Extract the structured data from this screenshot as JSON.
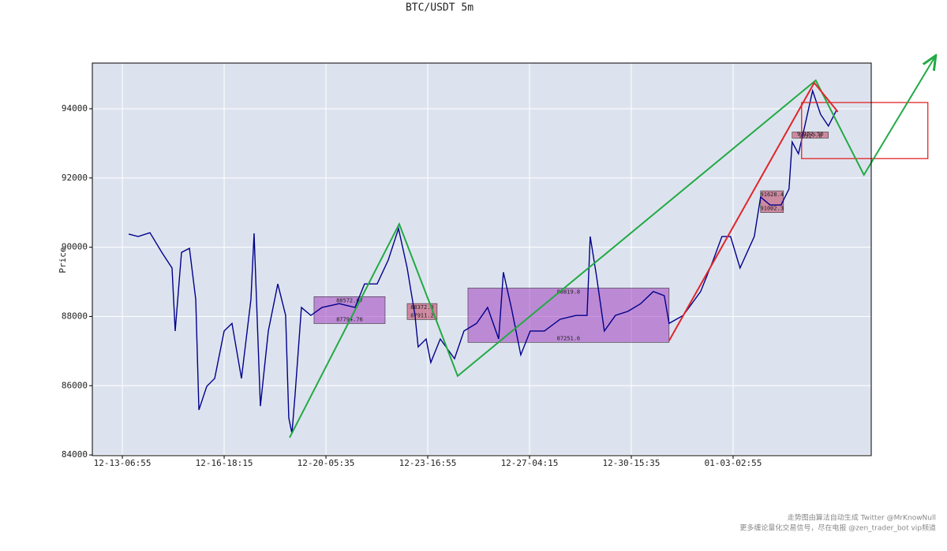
{
  "chart_data": {
    "type": "line",
    "title": "BTC/USDT 5m",
    "ylabel": "Price",
    "background": "#dde3ee",
    "grid": true,
    "xlim": [
      -295,
      7357
    ],
    "ylim": [
      83980,
      95320
    ],
    "xticks": [
      {
        "value": 0,
        "label": "12-13-06:55"
      },
      {
        "value": 1000,
        "label": "12-16-18:15"
      },
      {
        "value": 2000,
        "label": "12-20-05:35"
      },
      {
        "value": 3000,
        "label": "12-23-16:55"
      },
      {
        "value": 4000,
        "label": "12-27-04:15"
      },
      {
        "value": 5000,
        "label": "12-30-15:35"
      },
      {
        "value": 6000,
        "label": "01-03-02:55"
      }
    ],
    "yticks": [
      84000,
      86000,
      88000,
      90000,
      92000,
      94000
    ],
    "x": [
      62,
      155,
      271,
      388,
      488,
      519,
      581,
      659,
      721,
      752,
      829,
      907,
      1000,
      1077,
      1170,
      1263,
      1294,
      1356,
      1434,
      1527,
      1604,
      1635,
      1666,
      1697,
      1759,
      1852,
      1961,
      2131,
      2286,
      2379,
      2503,
      2612,
      2713,
      2798,
      2875,
      2906,
      2984,
      3030,
      3123,
      3263,
      3356,
      3480,
      3588,
      3697,
      3743,
      3821,
      3914,
      4007,
      4146,
      4301,
      4456,
      4565,
      4596,
      4658,
      4735,
      4844,
      4968,
      5092,
      5216,
      5324,
      5371,
      5510,
      5681,
      5805,
      5890,
      5975,
      6068,
      6208,
      6270,
      6363,
      6471,
      6549,
      6580,
      6642,
      6704,
      6781,
      6859,
      6936,
      7014
    ],
    "series": [
      {
        "color": "#00008b",
        "values": [
          90380,
          90310,
          90420,
          89850,
          89400,
          87580,
          89850,
          89970,
          88490,
          85300,
          85980,
          86210,
          87580,
          87800,
          86210,
          88490,
          90400,
          85410,
          87580,
          88940,
          88030,
          85070,
          84620,
          85750,
          88260,
          88030,
          88260,
          88370,
          88260,
          88940,
          88940,
          89630,
          90540,
          89400,
          88030,
          87120,
          87350,
          86670,
          87350,
          86780,
          87580,
          87800,
          88260,
          87350,
          89280,
          88260,
          86890,
          87580,
          87580,
          87920,
          88030,
          88030,
          90310,
          89170,
          87580,
          88030,
          88150,
          88370,
          88720,
          88600,
          87800,
          88030,
          88720,
          89630,
          90310,
          90310,
          89400,
          90310,
          91450,
          91220,
          91220,
          91680,
          93040,
          92700,
          93500,
          94520,
          93840,
          93500,
          93950
        ]
      }
    ],
    "boxes": [
      {
        "x": [
          1883,
          2581
        ],
        "high": 88572.07,
        "low": 87794.76,
        "color": "#a040c0"
      },
      {
        "x": [
          2798,
          3092
        ],
        "high": 88372.8,
        "low": 87911.2,
        "color": "#c04060"
      },
      {
        "x": [
          3395,
          5371
        ],
        "high": 88819.8,
        "low": 87251.6,
        "color": "#a040c0"
      },
      {
        "x": [
          6270,
          6495
        ],
        "high": 91628.4,
        "low": 91002.3,
        "color": "#c04060"
      },
      {
        "x": [
          6580,
          6936
        ],
        "high": 93327.8,
        "low": 93152.56,
        "color": "#c04060"
      }
    ],
    "strokes": [
      {
        "color": "#22aa44",
        "x": [
          1643,
          2720,
          3294,
          6812,
          7285,
          7983
        ],
        "values": [
          84500,
          90670,
          86280,
          94820,
          92090,
          95500
        ]
      },
      {
        "color": "#e0262a",
        "x": [
          5371,
          6797,
          7029
        ],
        "values": [
          87300,
          94750,
          93910
        ]
      }
    ],
    "target_box": {
      "color": "#e0262a",
      "x": [
        6673,
        7913
      ],
      "values": [
        92560,
        94180
      ]
    },
    "notes": [
      "走势图由算法自动生成  Twitter @MrKnowNull",
      "更多缠论量化交易信号，尽在电报 @zen_trader_bot vip频道"
    ]
  }
}
